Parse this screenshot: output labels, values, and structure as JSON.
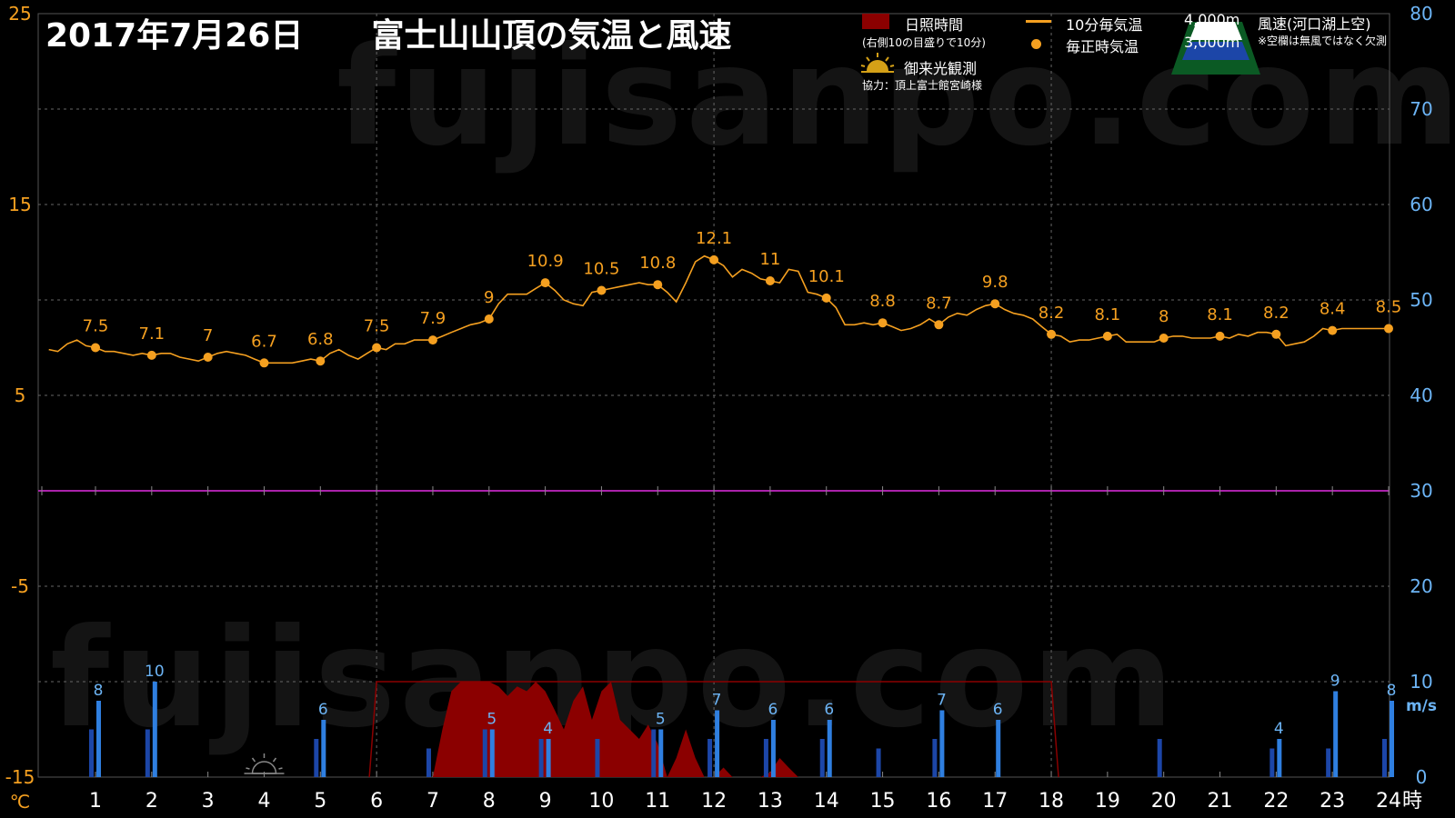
{
  "header": {
    "date": "2017年7月26日",
    "title": "富士山山頂の気温と風速"
  },
  "watermark": "fujisanpo.com",
  "legend": {
    "sunshine_label": "日照時間",
    "sunshine_note": "(右側10の目盛りで10分)",
    "temp10_label": "10分毎気温",
    "hourly_label": "毎正時気温",
    "goraiko_label": "御来光観測",
    "credit": "協力：頂上富士館宮崎様",
    "wind_4000": "4,000m",
    "wind_3000": "3,000m",
    "wind_title": "風速(河口湖上空)",
    "wind_note": "※空欄は無風ではなく欠測"
  },
  "colors": {
    "temp_line": "#f5a020",
    "zero_line": "#aa22aa",
    "wind_4000": "#2f7fe0",
    "wind_3000": "#1c46a8",
    "sunshine": "#8b0000",
    "left_axis": "#f5a020",
    "right_axis": "#6cb4f5"
  },
  "chart_data": {
    "type": "line",
    "x_unit": "時",
    "y_left_unit": "℃",
    "y_right_unit": "m/s",
    "ylim_left": [
      -15,
      25
    ],
    "yticks_left": [
      "25",
      "15",
      "5",
      "-5",
      "-15"
    ],
    "ylim_right": [
      0,
      80
    ],
    "yticks_right": [
      "80",
      "70",
      "60",
      "50",
      "40",
      "30",
      "20",
      "10",
      "0"
    ],
    "xticks": [
      "1",
      "2",
      "3",
      "4",
      "5",
      "6",
      "7",
      "8",
      "9",
      "10",
      "11",
      "12",
      "13",
      "14",
      "15",
      "16",
      "17",
      "18",
      "19",
      "20",
      "21",
      "22",
      "23",
      "24"
    ],
    "grid": true,
    "hourly_temperature": [
      {
        "hour": 1,
        "value": 7.5,
        "label": "7.5"
      },
      {
        "hour": 2,
        "value": 7.1,
        "label": "7.1"
      },
      {
        "hour": 3,
        "value": 7.0,
        "label": "7"
      },
      {
        "hour": 4,
        "value": 6.7,
        "label": "6.7"
      },
      {
        "hour": 5,
        "value": 6.8,
        "label": "6.8"
      },
      {
        "hour": 6,
        "value": 7.5,
        "label": "7.5"
      },
      {
        "hour": 7,
        "value": 7.9,
        "label": "7.9"
      },
      {
        "hour": 8,
        "value": 9.0,
        "label": "9"
      },
      {
        "hour": 9,
        "value": 10.9,
        "label": "10.9"
      },
      {
        "hour": 10,
        "value": 10.5,
        "label": "10.5"
      },
      {
        "hour": 11,
        "value": 10.8,
        "label": "10.8"
      },
      {
        "hour": 12,
        "value": 12.1,
        "label": "12.1"
      },
      {
        "hour": 13,
        "value": 11.0,
        "label": "11"
      },
      {
        "hour": 14,
        "value": 10.1,
        "label": "10.1"
      },
      {
        "hour": 15,
        "value": 8.8,
        "label": "8.8"
      },
      {
        "hour": 16,
        "value": 8.7,
        "label": "8.7"
      },
      {
        "hour": 17,
        "value": 9.8,
        "label": "9.8"
      },
      {
        "hour": 18,
        "value": 8.2,
        "label": "8.2"
      },
      {
        "hour": 19,
        "value": 8.1,
        "label": "8.1"
      },
      {
        "hour": 20,
        "value": 8.0,
        "label": "8"
      },
      {
        "hour": 21,
        "value": 8.1,
        "label": "8.1"
      },
      {
        "hour": 22,
        "value": 8.2,
        "label": "8.2"
      },
      {
        "hour": 23,
        "value": 8.4,
        "label": "8.4"
      },
      {
        "hour": 24,
        "value": 8.5,
        "label": "8.5"
      }
    ],
    "temperature_10min": [
      [
        0.17,
        7.4
      ],
      [
        0.33,
        7.3
      ],
      [
        0.5,
        7.7
      ],
      [
        0.67,
        7.9
      ],
      [
        0.83,
        7.6
      ],
      [
        1,
        7.5
      ],
      [
        1.17,
        7.3
      ],
      [
        1.33,
        7.3
      ],
      [
        1.5,
        7.2
      ],
      [
        1.67,
        7.1
      ],
      [
        1.83,
        7.2
      ],
      [
        2,
        7.1
      ],
      [
        2.17,
        7.2
      ],
      [
        2.33,
        7.2
      ],
      [
        2.5,
        7.0
      ],
      [
        2.67,
        6.9
      ],
      [
        2.83,
        6.8
      ],
      [
        3,
        7.0
      ],
      [
        3.17,
        7.2
      ],
      [
        3.33,
        7.3
      ],
      [
        3.5,
        7.2
      ],
      [
        3.67,
        7.1
      ],
      [
        3.83,
        6.9
      ],
      [
        4,
        6.7
      ],
      [
        4.17,
        6.7
      ],
      [
        4.33,
        6.7
      ],
      [
        4.5,
        6.7
      ],
      [
        4.67,
        6.8
      ],
      [
        4.83,
        6.9
      ],
      [
        5,
        6.8
      ],
      [
        5.17,
        7.2
      ],
      [
        5.33,
        7.4
      ],
      [
        5.5,
        7.1
      ],
      [
        5.67,
        6.9
      ],
      [
        5.83,
        7.2
      ],
      [
        6,
        7.5
      ],
      [
        6.17,
        7.4
      ],
      [
        6.33,
        7.7
      ],
      [
        6.5,
        7.7
      ],
      [
        6.67,
        7.9
      ],
      [
        6.83,
        7.9
      ],
      [
        7,
        7.9
      ],
      [
        7.17,
        8.1
      ],
      [
        7.33,
        8.3
      ],
      [
        7.5,
        8.5
      ],
      [
        7.67,
        8.7
      ],
      [
        7.83,
        8.8
      ],
      [
        8,
        9.0
      ],
      [
        8.17,
        9.8
      ],
      [
        8.33,
        10.3
      ],
      [
        8.5,
        10.3
      ],
      [
        8.67,
        10.3
      ],
      [
        8.83,
        10.6
      ],
      [
        9,
        10.9
      ],
      [
        9.17,
        10.5
      ],
      [
        9.33,
        10.0
      ],
      [
        9.5,
        9.8
      ],
      [
        9.67,
        9.7
      ],
      [
        9.83,
        10.4
      ],
      [
        10,
        10.5
      ],
      [
        10.17,
        10.6
      ],
      [
        10.33,
        10.7
      ],
      [
        10.5,
        10.8
      ],
      [
        10.67,
        10.9
      ],
      [
        10.83,
        10.8
      ],
      [
        11,
        10.8
      ],
      [
        11.17,
        10.4
      ],
      [
        11.33,
        9.9
      ],
      [
        11.5,
        10.9
      ],
      [
        11.67,
        12.0
      ],
      [
        11.83,
        12.3
      ],
      [
        12,
        12.1
      ],
      [
        12.17,
        11.8
      ],
      [
        12.33,
        11.2
      ],
      [
        12.5,
        11.6
      ],
      [
        12.67,
        11.4
      ],
      [
        12.83,
        11.1
      ],
      [
        13,
        11.0
      ],
      [
        13.17,
        10.9
      ],
      [
        13.33,
        11.6
      ],
      [
        13.5,
        11.5
      ],
      [
        13.67,
        10.4
      ],
      [
        13.83,
        10.3
      ],
      [
        14,
        10.1
      ],
      [
        14.17,
        9.6
      ],
      [
        14.33,
        8.7
      ],
      [
        14.5,
        8.7
      ],
      [
        14.67,
        8.8
      ],
      [
        14.83,
        8.7
      ],
      [
        15,
        8.8
      ],
      [
        15.17,
        8.6
      ],
      [
        15.33,
        8.4
      ],
      [
        15.5,
        8.5
      ],
      [
        15.67,
        8.7
      ],
      [
        15.83,
        9.0
      ],
      [
        16,
        8.7
      ],
      [
        16.17,
        9.1
      ],
      [
        16.33,
        9.3
      ],
      [
        16.5,
        9.2
      ],
      [
        16.67,
        9.5
      ],
      [
        16.83,
        9.7
      ],
      [
        17,
        9.8
      ],
      [
        17.17,
        9.5
      ],
      [
        17.33,
        9.3
      ],
      [
        17.5,
        9.2
      ],
      [
        17.67,
        9.0
      ],
      [
        17.83,
        8.6
      ],
      [
        18,
        8.2
      ],
      [
        18.17,
        8.1
      ],
      [
        18.33,
        7.8
      ],
      [
        18.5,
        7.9
      ],
      [
        18.67,
        7.9
      ],
      [
        18.83,
        8.0
      ],
      [
        19,
        8.1
      ],
      [
        19.17,
        8.2
      ],
      [
        19.33,
        7.8
      ],
      [
        19.5,
        7.8
      ],
      [
        19.67,
        7.8
      ],
      [
        19.83,
        7.8
      ],
      [
        20,
        8.0
      ],
      [
        20.17,
        8.1
      ],
      [
        20.33,
        8.1
      ],
      [
        20.5,
        8.0
      ],
      [
        20.67,
        8.0
      ],
      [
        20.83,
        8.0
      ],
      [
        21,
        8.1
      ],
      [
        21.17,
        8.0
      ],
      [
        21.33,
        8.2
      ],
      [
        21.5,
        8.1
      ],
      [
        21.67,
        8.3
      ],
      [
        21.83,
        8.3
      ],
      [
        22,
        8.2
      ],
      [
        22.17,
        7.6
      ],
      [
        22.33,
        7.7
      ],
      [
        22.5,
        7.8
      ],
      [
        22.67,
        8.1
      ],
      [
        22.83,
        8.5
      ],
      [
        23,
        8.4
      ],
      [
        23.17,
        8.5
      ],
      [
        23.33,
        8.5
      ],
      [
        23.5,
        8.5
      ],
      [
        23.67,
        8.5
      ],
      [
        23.83,
        8.5
      ],
      [
        24,
        8.5
      ]
    ],
    "wind_speed_4000m": [
      {
        "hour": 1,
        "value": 8,
        "label": "8"
      },
      {
        "hour": 2,
        "value": 10,
        "label": "10"
      },
      {
        "hour": 5,
        "value": 6,
        "label": "6"
      },
      {
        "hour": 8,
        "value": 5,
        "label": "5"
      },
      {
        "hour": 9,
        "value": 4,
        "label": "4"
      },
      {
        "hour": 11,
        "value": 5,
        "label": "5"
      },
      {
        "hour": 12,
        "value": 7,
        "label": "7"
      },
      {
        "hour": 13,
        "value": 6,
        "label": "6"
      },
      {
        "hour": 14,
        "value": 6,
        "label": "6"
      },
      {
        "hour": 16,
        "value": 7,
        "label": "7"
      },
      {
        "hour": 17,
        "value": 6,
        "label": "6"
      },
      {
        "hour": 22,
        "value": 4,
        "label": "4"
      },
      {
        "hour": 23,
        "value": 9,
        "label": "9"
      },
      {
        "hour": 24,
        "value": 8,
        "label": "8"
      }
    ],
    "wind_speed_3000m": [
      {
        "hour": 1,
        "value": 5
      },
      {
        "hour": 2,
        "value": 5
      },
      {
        "hour": 5,
        "value": 4
      },
      {
        "hour": 7,
        "value": 3
      },
      {
        "hour": 8,
        "value": 5
      },
      {
        "hour": 9,
        "value": 4
      },
      {
        "hour": 10,
        "value": 4
      },
      {
        "hour": 11,
        "value": 5
      },
      {
        "hour": 12,
        "value": 4
      },
      {
        "hour": 13,
        "value": 4
      },
      {
        "hour": 14,
        "value": 4
      },
      {
        "hour": 15,
        "value": 3
      },
      {
        "hour": 16,
        "value": 4
      },
      {
        "hour": 20,
        "value": 4
      },
      {
        "hour": 22,
        "value": 3
      },
      {
        "hour": 23,
        "value": 3
      },
      {
        "hour": 24,
        "value": 4
      }
    ],
    "sunshine_minutes": [
      [
        7.0,
        0
      ],
      [
        7.17,
        5
      ],
      [
        7.33,
        9
      ],
      [
        7.5,
        10
      ],
      [
        7.67,
        10
      ],
      [
        7.83,
        10
      ],
      [
        8.0,
        10
      ],
      [
        8.17,
        9.5
      ],
      [
        8.33,
        8.5
      ],
      [
        8.5,
        9.5
      ],
      [
        8.67,
        9
      ],
      [
        8.83,
        10
      ],
      [
        9.0,
        9
      ],
      [
        9.17,
        7
      ],
      [
        9.33,
        5
      ],
      [
        9.5,
        8
      ],
      [
        9.67,
        9.5
      ],
      [
        9.83,
        6
      ],
      [
        10.0,
        9
      ],
      [
        10.17,
        10
      ],
      [
        10.33,
        6
      ],
      [
        10.5,
        5
      ],
      [
        10.67,
        4
      ],
      [
        10.83,
        5.5
      ],
      [
        11.0,
        3.5
      ],
      [
        11.17,
        0
      ],
      [
        11.33,
        2
      ],
      [
        11.5,
        5
      ],
      [
        11.67,
        2
      ],
      [
        11.83,
        0
      ],
      [
        12.0,
        0
      ],
      [
        12.17,
        1
      ],
      [
        12.33,
        0
      ],
      [
        12.5,
        0
      ],
      [
        12.67,
        0
      ],
      [
        12.83,
        0
      ],
      [
        13.0,
        0.5
      ],
      [
        13.17,
        2
      ],
      [
        13.33,
        1
      ],
      [
        13.5,
        0
      ]
    ],
    "daylight_window_hours": [
      6,
      18
    ],
    "goraiko_hour": 4
  }
}
